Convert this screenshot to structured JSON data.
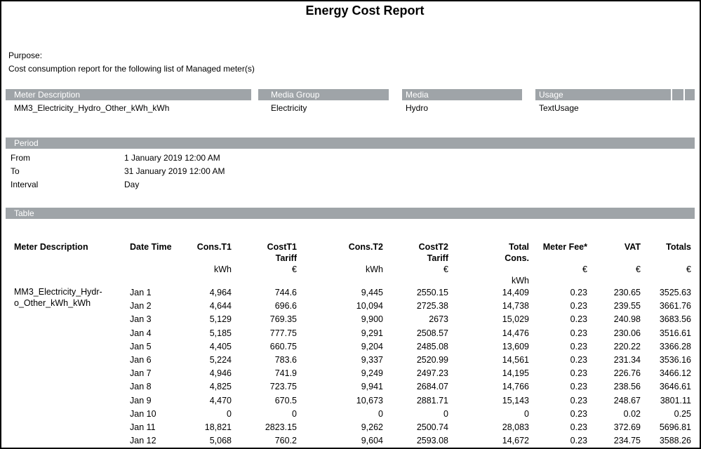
{
  "page": {
    "title": "Energy Cost Report"
  },
  "purpose": {
    "label": "Purpose:",
    "description": "Cost consumption report for the following list of Managed meter(s)"
  },
  "meters": {
    "columns": {
      "description": "Meter Description",
      "media_group": "Media Group",
      "media": "Media",
      "usage": "Usage"
    },
    "row": {
      "description": "MM3_Electricity_Hydro_Other_kWh_kWh",
      "media_group": "Electricity",
      "media": "Hydro",
      "usage": "TextUsage"
    }
  },
  "period": {
    "header": "Period",
    "from_label": "From",
    "from_value": "1 January 2019 12:00 AM",
    "to_label": "To",
    "to_value": "31 January 2019 12:00 AM",
    "interval_label": "Interval",
    "interval_value": "Day"
  },
  "table": {
    "header": "Table",
    "columns": [
      {
        "line1": "Meter Description",
        "line2": "",
        "line3": "",
        "line4": ""
      },
      {
        "line1": "Date Time",
        "line2": "",
        "line3": "",
        "line4": ""
      },
      {
        "line1": "Cons.T1",
        "line2": "",
        "line3": "kWh",
        "line4": ""
      },
      {
        "line1": "CostT1",
        "line2": "Tariff",
        "line3": "€",
        "line4": ""
      },
      {
        "line1": "Cons.T2",
        "line2": "",
        "line3": "kWh",
        "line4": ""
      },
      {
        "line1": "CostT2",
        "line2": "Tariff",
        "line3": "€",
        "line4": ""
      },
      {
        "line1": "Total",
        "line2": "Cons.",
        "line3": "",
        "line4": "kWh"
      },
      {
        "line1": "Meter Fee*",
        "line2": "",
        "line3": "€",
        "line4": ""
      },
      {
        "line1": "VAT",
        "line2": "",
        "line3": "€",
        "line4": ""
      },
      {
        "line1": "Totals",
        "line2": "",
        "line3": "€",
        "line4": ""
      }
    ],
    "rows": [
      {
        "meter": "MM3_Electricity_Hydr-\no_Other_kWh_kWh",
        "date": "Jan 1",
        "cons_t1": "4,964",
        "cost_t1": "744.6",
        "cons_t2": "9,445",
        "cost_t2": "2550.15",
        "total_cons": "14,409",
        "meter_fee": "0.23",
        "vat": "230.65",
        "totals": "3525.63"
      },
      {
        "meter": "",
        "date": "Jan 2",
        "cons_t1": "4,644",
        "cost_t1": "696.6",
        "cons_t2": "10,094",
        "cost_t2": "2725.38",
        "total_cons": "14,738",
        "meter_fee": "0.23",
        "vat": "239.55",
        "totals": "3661.76"
      },
      {
        "meter": "",
        "date": "Jan 3",
        "cons_t1": "5,129",
        "cost_t1": "769.35",
        "cons_t2": "9,900",
        "cost_t2": "2673",
        "total_cons": "15,029",
        "meter_fee": "0.23",
        "vat": "240.98",
        "totals": "3683.56"
      },
      {
        "meter": "",
        "date": "Jan 4",
        "cons_t1": "5,185",
        "cost_t1": "777.75",
        "cons_t2": "9,291",
        "cost_t2": "2508.57",
        "total_cons": "14,476",
        "meter_fee": "0.23",
        "vat": "230.06",
        "totals": "3516.61"
      },
      {
        "meter": "",
        "date": "Jan 5",
        "cons_t1": "4,405",
        "cost_t1": "660.75",
        "cons_t2": "9,204",
        "cost_t2": "2485.08",
        "total_cons": "13,609",
        "meter_fee": "0.23",
        "vat": "220.22",
        "totals": "3366.28"
      },
      {
        "meter": "",
        "date": "Jan 6",
        "cons_t1": "5,224",
        "cost_t1": "783.6",
        "cons_t2": "9,337",
        "cost_t2": "2520.99",
        "total_cons": "14,561",
        "meter_fee": "0.23",
        "vat": "231.34",
        "totals": "3536.16"
      },
      {
        "meter": "",
        "date": "Jan 7",
        "cons_t1": "4,946",
        "cost_t1": "741.9",
        "cons_t2": "9,249",
        "cost_t2": "2497.23",
        "total_cons": "14,195",
        "meter_fee": "0.23",
        "vat": "226.76",
        "totals": "3466.12"
      },
      {
        "meter": "",
        "date": "Jan 8",
        "cons_t1": "4,825",
        "cost_t1": "723.75",
        "cons_t2": "9,941",
        "cost_t2": "2684.07",
        "total_cons": "14,766",
        "meter_fee": "0.23",
        "vat": "238.56",
        "totals": "3646.61"
      },
      {
        "meter": "",
        "date": "Jan 9",
        "cons_t1": "4,470",
        "cost_t1": "670.5",
        "cons_t2": "10,673",
        "cost_t2": "2881.71",
        "total_cons": "15,143",
        "meter_fee": "0.23",
        "vat": "248.67",
        "totals": "3801.11"
      },
      {
        "meter": "",
        "date": "Jan 10",
        "cons_t1": "0",
        "cost_t1": "0",
        "cons_t2": "0",
        "cost_t2": "0",
        "total_cons": "0",
        "meter_fee": "0.23",
        "vat": "0.02",
        "totals": "0.25"
      },
      {
        "meter": "",
        "date": "Jan 11",
        "cons_t1": "18,821",
        "cost_t1": "2823.15",
        "cons_t2": "9,262",
        "cost_t2": "2500.74",
        "total_cons": "28,083",
        "meter_fee": "0.23",
        "vat": "372.69",
        "totals": "5696.81"
      },
      {
        "meter": "",
        "date": "Jan 12",
        "cons_t1": "5,068",
        "cost_t1": "760.2",
        "cons_t2": "9,604",
        "cost_t2": "2593.08",
        "total_cons": "14,672",
        "meter_fee": "0.23",
        "vat": "234.75",
        "totals": "3588.26"
      }
    ]
  }
}
